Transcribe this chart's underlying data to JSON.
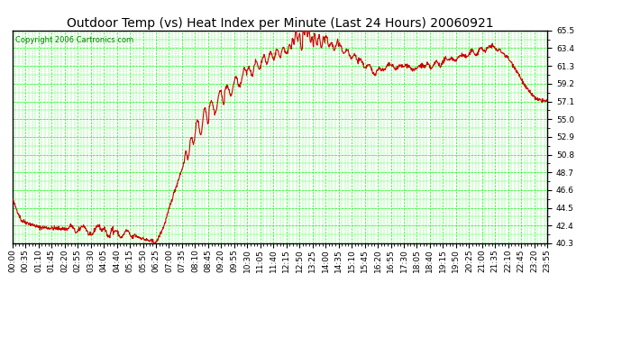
{
  "title": "Outdoor Temp (vs) Heat Index per Minute (Last 24 Hours) 20060921",
  "copyright_text": "Copyright 2006 Cartronics.com",
  "ylim": [
    40.3,
    65.5
  ],
  "yticks": [
    40.3,
    42.4,
    44.5,
    46.6,
    48.7,
    50.8,
    52.9,
    55.0,
    57.1,
    59.2,
    61.3,
    63.4,
    65.5
  ],
  "xtick_labels": [
    "00:00",
    "00:35",
    "01:10",
    "01:45",
    "02:20",
    "02:55",
    "03:30",
    "04:05",
    "04:40",
    "05:15",
    "05:50",
    "06:25",
    "07:00",
    "07:35",
    "08:10",
    "08:45",
    "09:20",
    "09:55",
    "10:30",
    "11:05",
    "11:40",
    "12:15",
    "12:50",
    "13:25",
    "14:00",
    "14:35",
    "15:10",
    "15:45",
    "16:20",
    "16:55",
    "17:30",
    "18:05",
    "18:40",
    "19:15",
    "19:50",
    "20:25",
    "21:00",
    "21:35",
    "22:10",
    "22:45",
    "23:20",
    "23:55"
  ],
  "background_color": "#ffffff",
  "plot_bg_color": "#ffffff",
  "grid_color": "#00ff00",
  "line_color": "#cc0000",
  "title_fontsize": 10,
  "tick_fontsize": 6.5,
  "copyright_fontsize": 6,
  "line_width": 0.8
}
